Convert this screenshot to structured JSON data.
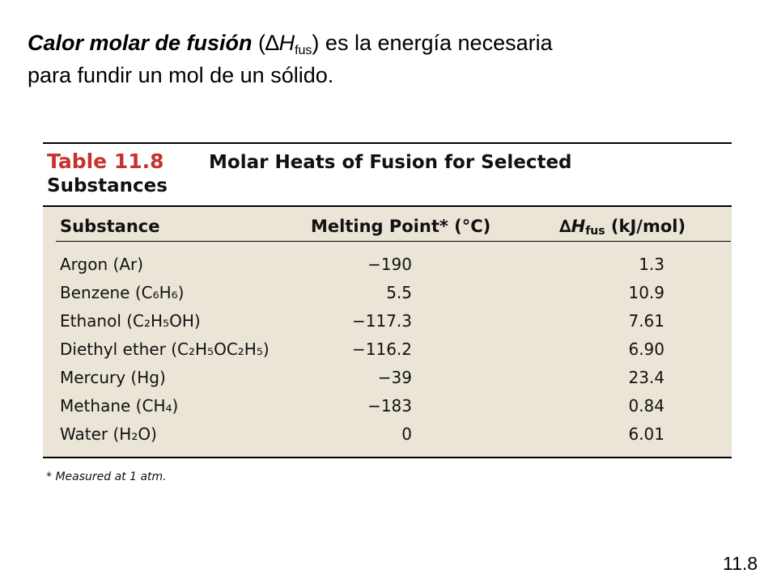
{
  "heading": {
    "bold_term": "Calor molar de fusión",
    "paren_open": " (",
    "delta_symbol": "∆",
    "h_symbol": "H",
    "h_subscript": "fus",
    "paren_close": ")",
    "line1_rest": " es la energía necesaria",
    "line2": "para fundir un mol de un sólido."
  },
  "table": {
    "number": "Table 11.8",
    "title_line1": "Molar Heats of Fusion for Selected",
    "title_line2": "Substances",
    "columns": {
      "substance": "Substance",
      "melting_point": "Melting Point* (°C)",
      "delta_symbol": "∆",
      "h_symbol": "H",
      "h_subscript": "fus",
      "units": " (kJ/mol)"
    },
    "rows": [
      {
        "substance": "Argon (Ar)",
        "melting_point": "−190",
        "delta_h_fus": "1.3"
      },
      {
        "substance": "Benzene (C₆H₆)",
        "melting_point": "5.5",
        "delta_h_fus": "10.9"
      },
      {
        "substance": "Ethanol (C₂H₅OH)",
        "melting_point": "−117.3",
        "delta_h_fus": "7.61"
      },
      {
        "substance": "Diethyl ether (C₂H₅OC₂H₅)",
        "melting_point": "−116.2",
        "delta_h_fus": "6.90"
      },
      {
        "substance": "Mercury (Hg)",
        "melting_point": "−39",
        "delta_h_fus": "23.4"
      },
      {
        "substance": "Methane (CH₄)",
        "melting_point": "−183",
        "delta_h_fus": "0.84"
      },
      {
        "substance": "Water (H₂O)",
        "melting_point": "0",
        "delta_h_fus": "6.01"
      }
    ],
    "footnote": "* Measured at 1 atm."
  },
  "slide_number": "11.8",
  "colors": {
    "table_number": "#c8322d",
    "panel_background": "#ebe5d7"
  }
}
